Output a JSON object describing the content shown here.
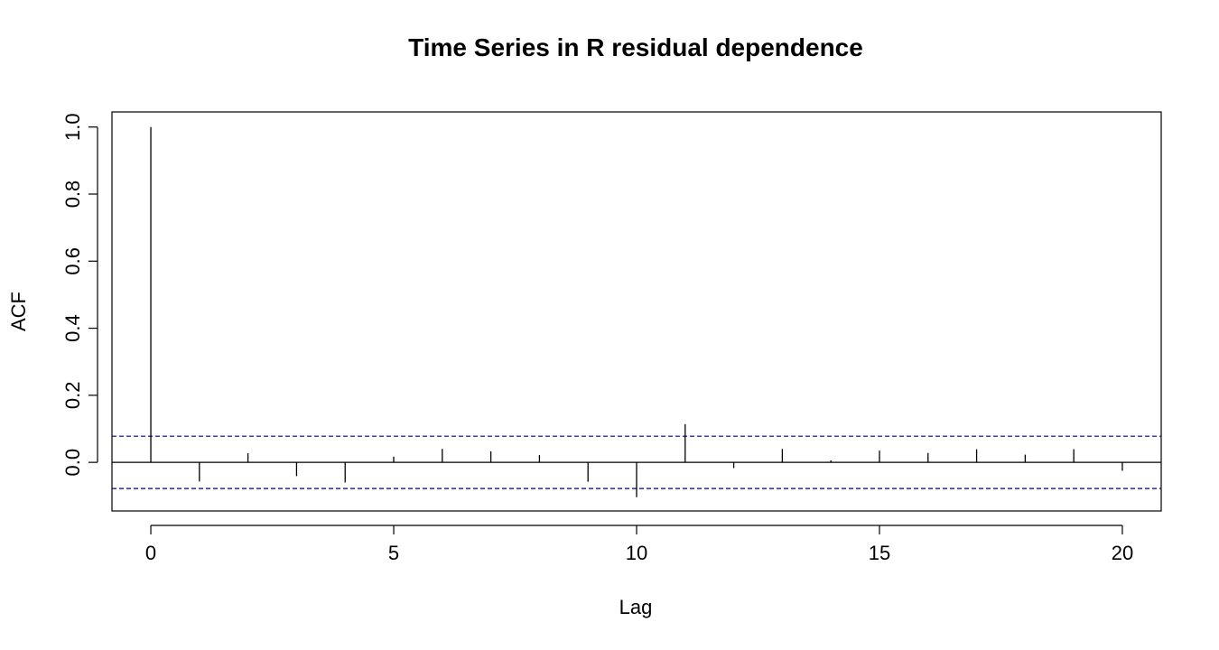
{
  "chart_data": {
    "type": "bar",
    "title": "Time Series in R residual dependence",
    "xlabel": "Lag",
    "ylabel": "ACF",
    "x": [
      0,
      1,
      2,
      3,
      4,
      5,
      6,
      7,
      8,
      9,
      10,
      11,
      12,
      13,
      14,
      15,
      16,
      17,
      18,
      19,
      20
    ],
    "values": [
      1.0,
      -0.057,
      0.027,
      -0.041,
      -0.06,
      0.017,
      0.04,
      0.033,
      0.022,
      -0.058,
      -0.104,
      0.114,
      -0.017,
      0.04,
      0.006,
      0.035,
      0.028,
      0.039,
      0.023,
      0.039,
      -0.025
    ],
    "confidence_bounds": [
      0.078,
      -0.078
    ],
    "xlim": [
      -0.8,
      20.8
    ],
    "ylim": [
      -0.145,
      1.045
    ],
    "x_ticks": [
      0,
      5,
      10,
      15,
      20
    ],
    "y_ticks": [
      0.0,
      0.2,
      0.4,
      0.6,
      0.8,
      1.0
    ],
    "x_tick_labels": [
      "0",
      "5",
      "10",
      "15",
      "20"
    ],
    "y_tick_labels": [
      "0.0",
      "0.2",
      "0.4",
      "0.6",
      "0.8",
      "1.0"
    ],
    "grid": false,
    "colors": {
      "bars": "#000000",
      "bounds": "#00008b",
      "zero_line": "#000000",
      "frame": "#000000"
    }
  }
}
